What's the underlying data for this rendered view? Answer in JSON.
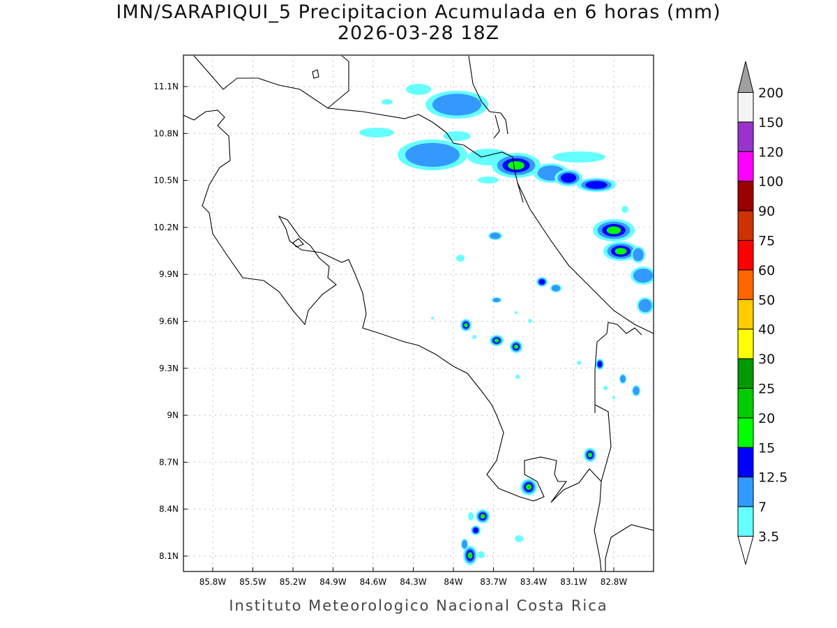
{
  "title": "IMN/SARAPIQUI_5 Precipitacion Acumulada en 6 horas (mm)",
  "subtitle": "2026-03-28 18Z",
  "footer": "Instituto Meteorologico Nacional Costa Rica",
  "lon_ticks": [
    "85.8W",
    "85.5W",
    "85.2W",
    "84.9W",
    "84.6W",
    "84.3W",
    "84W",
    "83.7W",
    "83.4W",
    "83.1W",
    "82.8W"
  ],
  "lat_ticks": [
    "11.1N",
    "10.8N",
    "10.5N",
    "10.2N",
    "9.9N",
    "9.6N",
    "9.3N",
    "9N",
    "8.7N",
    "8.4N",
    "8.1N"
  ],
  "colorbar": {
    "levels": [
      "3.5",
      "7",
      "12.5",
      "15",
      "20",
      "25",
      "30",
      "40",
      "50",
      "60",
      "75",
      "90",
      "100",
      "120",
      "150",
      "200"
    ],
    "colors": [
      "#66ffff",
      "#3399ff",
      "#0000ff",
      "#00ff00",
      "#00cc00",
      "#009900",
      "#ffff00",
      "#ffcc00",
      "#ff6600",
      "#ff0000",
      "#cc3300",
      "#990000",
      "#ff00ff",
      "#9933cc",
      "#f4f4f4"
    ],
    "over_color": "#a0a0a0",
    "under_color": "#ffffff"
  }
}
